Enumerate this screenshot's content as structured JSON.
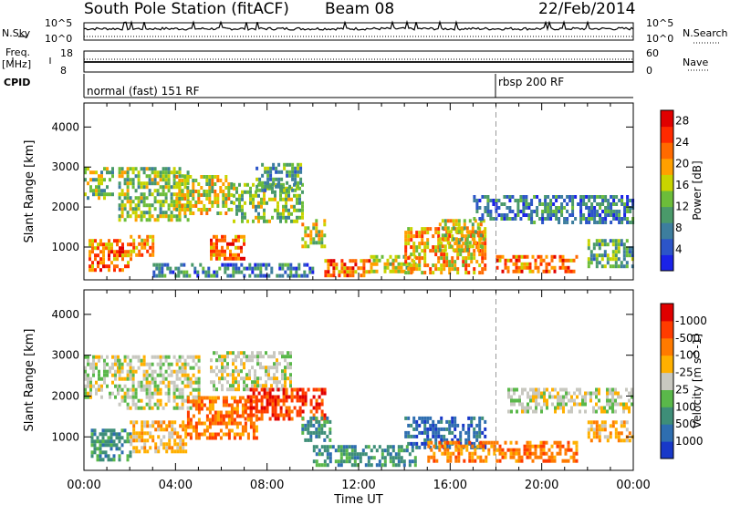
{
  "header": {
    "station": "South Pole Station (fitACF)",
    "beam": "Beam 08",
    "date": "22/Feb/2014"
  },
  "top_labels": {
    "nsky": "N.Sky",
    "freq_line1": "Freq.",
    "freq_line2": "[MHz]",
    "cpid": "CPID",
    "nsearch": "N.Search",
    "nave": "Nave"
  },
  "top_ticks": {
    "nsky_hi": "10^5",
    "nsky_lo": "10^0",
    "freq_hi": "18",
    "freq_lo": "8",
    "nave_hi": "60",
    "nave_lo": "0"
  },
  "cpid_modes": [
    {
      "label": "normal (fast) 151 RF",
      "start_hour": 0
    },
    {
      "label": "rbsp 200 RF",
      "start_hour": 18
    }
  ],
  "colors": {
    "power": [
      "#1a22e8",
      "#2c55c8",
      "#3d7e9e",
      "#4a9a6a",
      "#6cbd3a",
      "#c8d400",
      "#ffa000",
      "#ff6a00",
      "#ff2a00",
      "#e00000"
    ],
    "velocity": [
      "#1838c8",
      "#2e6eb0",
      "#3e8e78",
      "#5ab84a",
      "#c8c8c0",
      "#ffb000",
      "#ff7a00",
      "#ff3c00",
      "#e00000"
    ]
  },
  "chart_data": [
    {
      "type": "heatmap",
      "title": "Power",
      "ylabel": "Slant Range [km]",
      "xlabel": "",
      "x_ticks": [
        "00:00",
        "04:00",
        "08:00",
        "12:00",
        "16:00",
        "20:00",
        "00:00"
      ],
      "x_range_hours": [
        0,
        24
      ],
      "y_ticks": [
        1000,
        2000,
        3000,
        4000
      ],
      "ylim": [
        180,
        4600
      ],
      "colorbar": {
        "label": "Power [dB]",
        "ticks": [
          4,
          8,
          12,
          16,
          20,
          24,
          28
        ],
        "range": [
          0,
          30
        ]
      },
      "mode_change_hour": 18,
      "echo_regions": [
        {
          "t": [
            0.0,
            1.3
          ],
          "r": [
            2200,
            3000
          ],
          "v": 12
        },
        {
          "t": [
            0.2,
            2.0
          ],
          "r": [
            450,
            1200
          ],
          "v": 24
        },
        {
          "t": [
            1.5,
            4.5
          ],
          "r": [
            1700,
            3000
          ],
          "v": 12
        },
        {
          "t": [
            2.0,
            3.0
          ],
          "r": [
            800,
            1300
          ],
          "v": 20
        },
        {
          "t": [
            3.0,
            10.0
          ],
          "r": [
            300,
            600
          ],
          "v": 8
        },
        {
          "t": [
            4.0,
            6.5
          ],
          "r": [
            1800,
            2800
          ],
          "v": 16
        },
        {
          "t": [
            5.5,
            7.0
          ],
          "r": [
            700,
            1300
          ],
          "v": 22
        },
        {
          "t": [
            6.5,
            9.5
          ],
          "r": [
            1600,
            2600
          ],
          "v": 14
        },
        {
          "t": [
            7.5,
            9.5
          ],
          "r": [
            2400,
            3100
          ],
          "v": 10
        },
        {
          "t": [
            9.5,
            10.5
          ],
          "r": [
            1000,
            1700
          ],
          "v": 18
        },
        {
          "t": [
            10.5,
            12.5
          ],
          "r": [
            300,
            700
          ],
          "v": 22
        },
        {
          "t": [
            12.5,
            14.5
          ],
          "r": [
            350,
            800
          ],
          "v": 18
        },
        {
          "t": [
            14.0,
            17.5
          ],
          "r": [
            400,
            1500
          ],
          "v": 20
        },
        {
          "t": [
            15.5,
            17.5
          ],
          "r": [
            900,
            1700
          ],
          "v": 16
        },
        {
          "t": [
            18.0,
            21.5
          ],
          "r": [
            400,
            800
          ],
          "v": 22
        },
        {
          "t": [
            17.0,
            19.5
          ],
          "r": [
            1700,
            2300
          ],
          "v": 8
        },
        {
          "t": [
            19.5,
            24.0
          ],
          "r": [
            1600,
            2300
          ],
          "v": 8
        },
        {
          "t": [
            22.0,
            24.0
          ],
          "r": [
            500,
            1200
          ],
          "v": 10
        }
      ]
    },
    {
      "type": "heatmap",
      "title": "Velocity",
      "ylabel": "Slant Range [km]",
      "xlabel": "Time UT",
      "x_ticks": [
        "00:00",
        "04:00",
        "08:00",
        "12:00",
        "16:00",
        "20:00",
        "00:00"
      ],
      "x_range_hours": [
        0,
        24
      ],
      "y_ticks": [
        1000,
        2000,
        3000,
        4000
      ],
      "ylim": [
        180,
        4600
      ],
      "colorbar": {
        "label": "Velocity [m s^-1]",
        "ticks": [
          "1000",
          "500",
          "100",
          "25",
          "-25",
          "-100",
          "-500",
          "-1000"
        ]
      },
      "mode_change_hour": 18,
      "echo_regions": [
        {
          "t": [
            0.0,
            1.5
          ],
          "r": [
            2000,
            3000
          ],
          "c": 4
        },
        {
          "t": [
            0.3,
            2.0
          ],
          "r": [
            400,
            1200
          ],
          "c": 2
        },
        {
          "t": [
            1.5,
            5.0
          ],
          "r": [
            1700,
            3000
          ],
          "c": 4
        },
        {
          "t": [
            2.0,
            4.5
          ],
          "r": [
            600,
            1400
          ],
          "c": 5
        },
        {
          "t": [
            4.5,
            7.5
          ],
          "r": [
            1000,
            2000
          ],
          "c": 6
        },
        {
          "t": [
            5.5,
            9.0
          ],
          "r": [
            2200,
            3100
          ],
          "c": 4
        },
        {
          "t": [
            7.0,
            10.5
          ],
          "r": [
            1400,
            2200
          ],
          "c": 7
        },
        {
          "t": [
            9.5,
            10.8
          ],
          "r": [
            900,
            1500
          ],
          "c": 2
        },
        {
          "t": [
            10.0,
            14.5
          ],
          "r": [
            300,
            800
          ],
          "c": 2
        },
        {
          "t": [
            14.0,
            17.5
          ],
          "r": [
            700,
            1500
          ],
          "c": 1
        },
        {
          "t": [
            15.0,
            18.0
          ],
          "r": [
            400,
            900
          ],
          "c": 6
        },
        {
          "t": [
            18.0,
            21.5
          ],
          "r": [
            400,
            900
          ],
          "c": 6
        },
        {
          "t": [
            18.5,
            24.0
          ],
          "r": [
            1600,
            2200
          ],
          "c": 4
        },
        {
          "t": [
            22.0,
            24.0
          ],
          "r": [
            900,
            1400
          ],
          "c": 5
        }
      ]
    }
  ]
}
